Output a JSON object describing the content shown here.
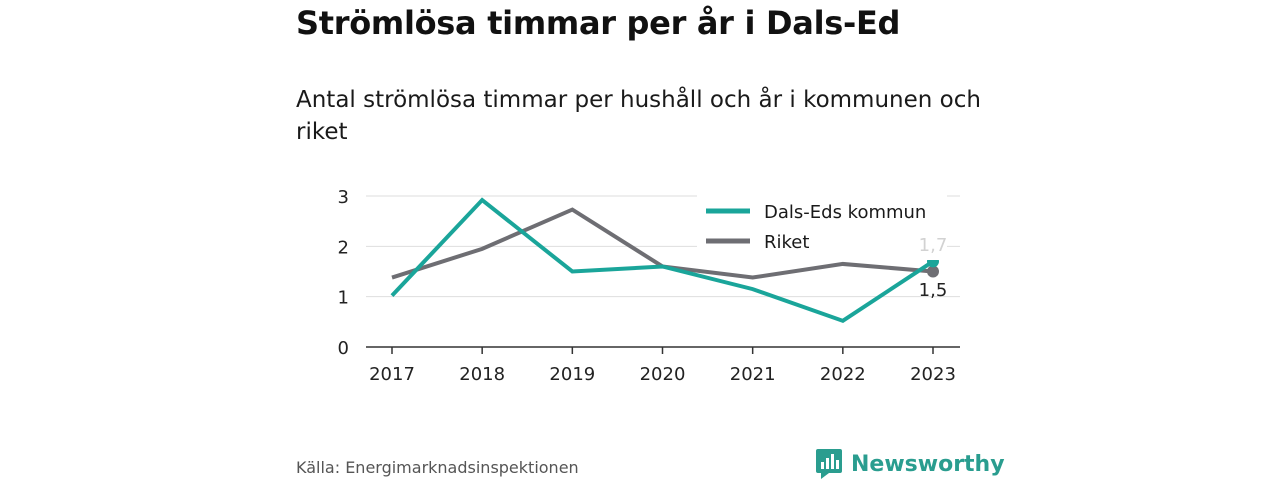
{
  "title": "Strömlösa timmar per år i Dals-Ed",
  "subtitle": "Antal strömlösa timmar per hushåll och år i kommunen och riket",
  "source": "Källa: Energimarknadsinspektionen",
  "brand": {
    "name": "Newsworthy",
    "icon": "bar-chart-bubble-icon",
    "color": "#2a9d8f"
  },
  "chart_data": {
    "type": "line",
    "x": [
      "2017",
      "2018",
      "2019",
      "2020",
      "2021",
      "2022",
      "2023"
    ],
    "ylim": [
      0,
      3
    ],
    "yticks": [
      "0",
      "1",
      "2",
      "3"
    ],
    "grid": true,
    "legend_position": "top-right",
    "series": [
      {
        "name": "Dals-Eds kommun",
        "color": "#1aa59a",
        "values": [
          1.02,
          2.92,
          1.5,
          1.6,
          1.15,
          0.52,
          1.7
        ],
        "end_label": "1,7"
      },
      {
        "name": "Riket",
        "color": "#6e6e73",
        "values": [
          1.38,
          1.95,
          2.73,
          1.6,
          1.38,
          1.65,
          1.5
        ],
        "end_label": "1,5"
      }
    ]
  }
}
